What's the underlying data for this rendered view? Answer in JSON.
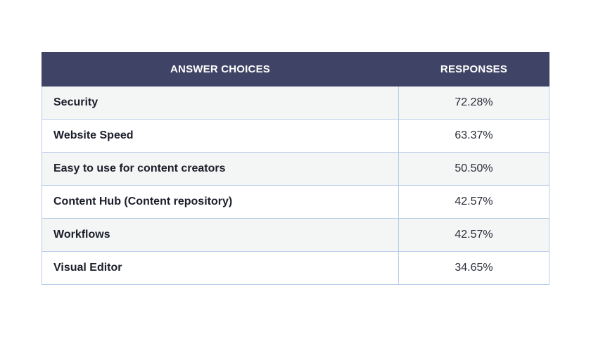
{
  "table": {
    "headers": {
      "choice": "ANSWER CHOICES",
      "response": "RESPONSES"
    },
    "rows": [
      {
        "choice": "Security",
        "response": "72.28%"
      },
      {
        "choice": "Website Speed",
        "response": "63.37%"
      },
      {
        "choice": "Easy to use for content creators",
        "response": "50.50%"
      },
      {
        "choice": "Content Hub (Content repository)",
        "response": "42.57%"
      },
      {
        "choice": "Workflows",
        "response": "42.57%"
      },
      {
        "choice": "Visual Editor",
        "response": "34.65%"
      }
    ]
  },
  "colors": {
    "header_background": "#3f4466",
    "header_text": "#ffffff",
    "row_stripe": "#f4f5f5",
    "border": "#b9cde8"
  }
}
